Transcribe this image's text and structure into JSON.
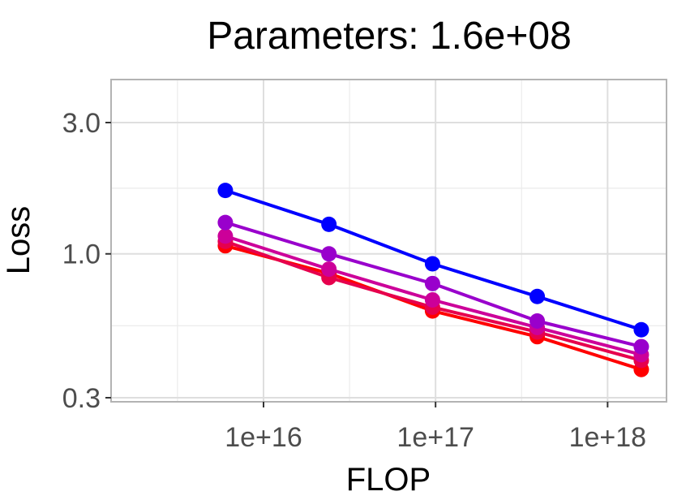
{
  "chart_data": {
    "type": "line",
    "title": "Parameters: 1.6e+08",
    "xlabel": "FLOP",
    "ylabel": "Loss",
    "x_scale": "log",
    "y_scale": "log",
    "xlim": [
      1300000000000000.0,
      2.2e+18
    ],
    "ylim": [
      0.29,
      4.3
    ],
    "x_ticks": [
      {
        "value": 1e+16,
        "label": "1e+16"
      },
      {
        "value": 1e+17,
        "label": "1e+17"
      },
      {
        "value": 1e+18,
        "label": "1e+18"
      }
    ],
    "y_ticks": [
      {
        "value": 0.3,
        "label": "0.3"
      },
      {
        "value": 1.0,
        "label": "1.0"
      },
      {
        "value": 3.0,
        "label": "3.0"
      }
    ],
    "grid": true,
    "legend": "none",
    "x": [
      6000000000000000.0,
      2.4e+16,
      9.6e+16,
      3.9e+17,
      1.57e+18
    ],
    "series": [
      {
        "color": "#0000ff",
        "values": [
          1.7,
          1.28,
          0.92,
          0.7,
          0.53
        ]
      },
      {
        "color": "#9900cc",
        "values": [
          1.3,
          1.0,
          0.78,
          0.57,
          0.46
        ]
      },
      {
        "color": "#cc0099",
        "values": [
          1.16,
          0.88,
          0.68,
          0.54,
          0.43
        ]
      },
      {
        "color": "#e6004d",
        "values": [
          1.11,
          0.82,
          0.64,
          0.52,
          0.41
        ]
      },
      {
        "color": "#ff0000",
        "values": [
          1.07,
          0.85,
          0.62,
          0.5,
          0.38
        ]
      }
    ]
  }
}
